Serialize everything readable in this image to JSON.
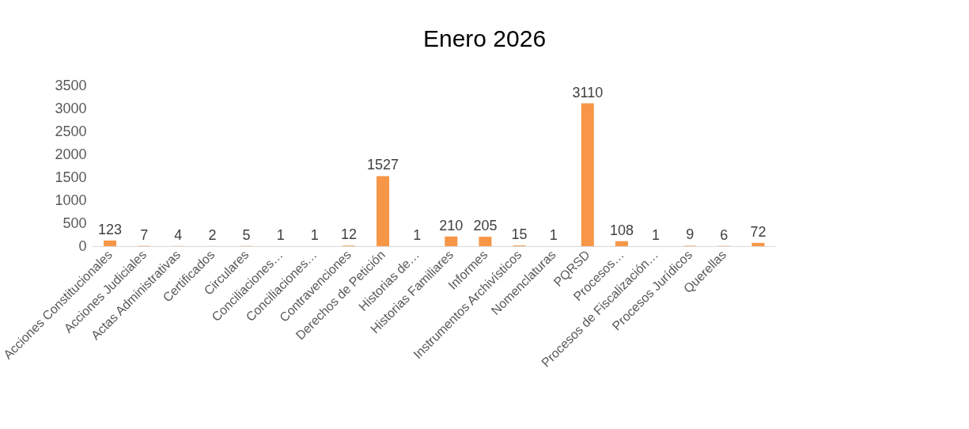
{
  "chart_data": {
    "type": "bar",
    "title": "Enero 2026",
    "categories": [
      "Acciones Constitucionales",
      "Acciones Judiciales",
      "Actas Administrativas",
      "Certificados",
      "Circulares",
      "Conciliaciones…",
      "Conciliaciones…",
      "Contravenciones",
      "Derechos de Petición",
      "Historias de…",
      "Historias Familiares",
      "Informes",
      "Instrumentos Archivísticos",
      "Nomenclaturas",
      "PQRSD",
      "Procesos…",
      "Procesos de Fiscalización…",
      "Procesos Jurídicos",
      "Querellas",
      null
    ],
    "values": [
      123,
      7,
      4,
      2,
      5,
      1,
      1,
      12,
      1527,
      1,
      210,
      205,
      15,
      1,
      3110,
      108,
      1,
      9,
      6,
      72
    ],
    "color": "#f79646",
    "ylim": [
      0,
      3500
    ],
    "yticks": [
      0,
      500,
      1000,
      1500,
      2000,
      2500,
      3000,
      3500
    ],
    "grid": false,
    "data_labels": true
  }
}
